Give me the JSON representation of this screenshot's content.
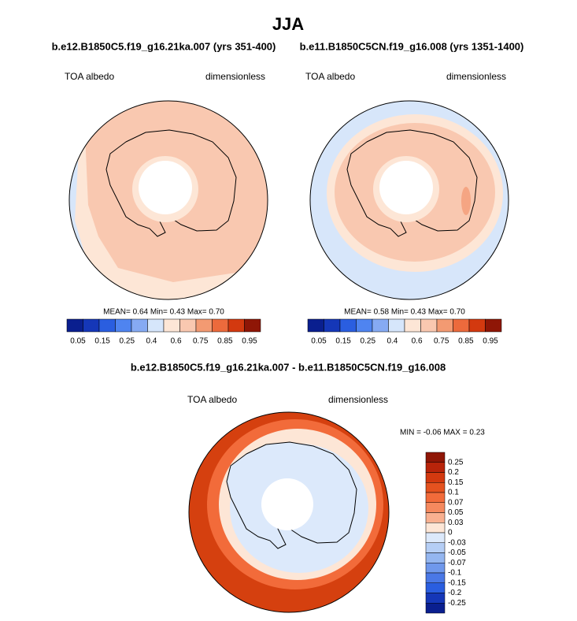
{
  "header": {
    "title": "JJA",
    "subtitle_left": "b.e12.B1850C5.f19_g16.21ka.007 (yrs 351-400)",
    "subtitle_right": "b.e11.B1850C5CN.f19_g16.008 (yrs 1351-1400)"
  },
  "panels": [
    {
      "left_label": "TOA albedo",
      "right_label": "dimensionless",
      "stats": "MEAN=  0.64  Min=  0.43  Max=  0.70",
      "colorbar_labels": [
        "0.05",
        "0.15",
        "0.25",
        "0.4",
        "0.6",
        "0.75",
        "0.85",
        "0.95"
      ]
    },
    {
      "left_label": "TOA albedo",
      "right_label": "dimensionless",
      "stats": "MEAN=  0.58  Min=  0.43  Max=  0.70",
      "colorbar_labels": [
        "0.05",
        "0.15",
        "0.25",
        "0.4",
        "0.6",
        "0.75",
        "0.85",
        "0.95"
      ]
    }
  ],
  "difference": {
    "title": "b.e12.B1850C5.f19_g16.21ka.007 - b.e11.B1850C5CN.f19_g16.008",
    "left_label": "TOA albedo",
    "right_label": "dimensionless",
    "stats": "MIN = -0.06 MAX =  0.23",
    "colorbar_labels": [
      "0.25",
      "0.2",
      "0.15",
      "0.1",
      "0.07",
      "0.05",
      "0.03",
      "0",
      "-0.03",
      "-0.05",
      "-0.07",
      "-0.1",
      "-0.15",
      "-0.2",
      "-0.25"
    ]
  }
}
